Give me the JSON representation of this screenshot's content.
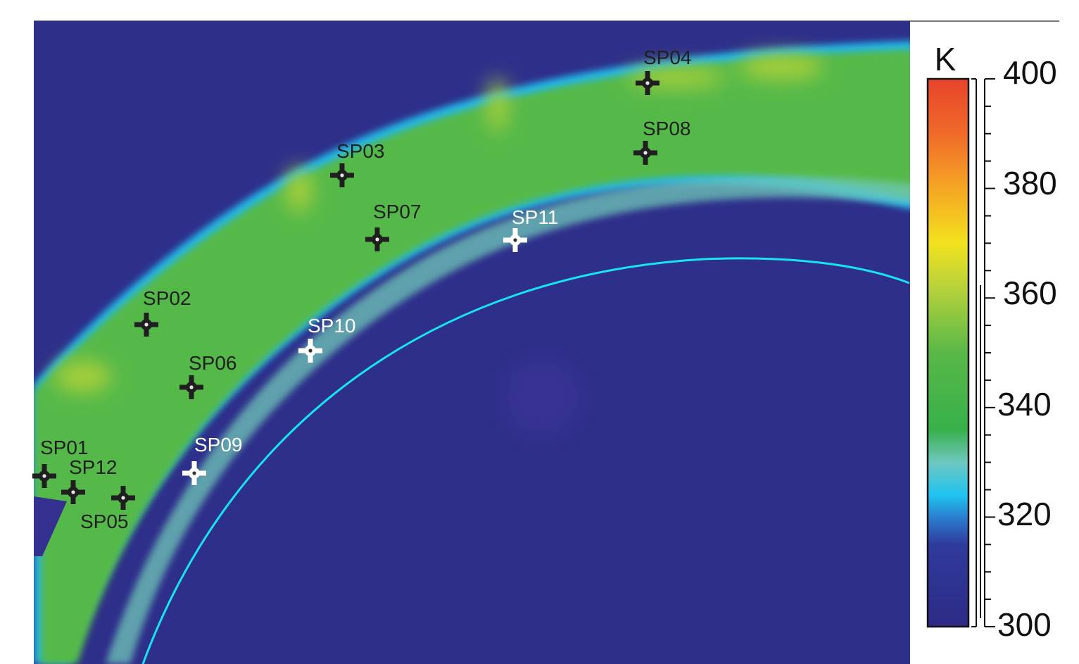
{
  "colorbar": {
    "unit": "K",
    "min": 300,
    "max": 400,
    "tick_labels": [
      "400",
      "380",
      "360",
      "340",
      "320",
      "300"
    ],
    "tick_values": [
      400,
      380,
      360,
      340,
      320,
      300
    ],
    "colors": {
      "300": "#2e2a86",
      "315": "#2f3b9c",
      "320": "#2a7fd0",
      "324": "#1fc3f0",
      "330": "#6ec8c0",
      "336": "#38b04a",
      "350": "#58b848",
      "362": "#b8d23a",
      "370": "#f2e21e",
      "380": "#f5a623",
      "390": "#f06a2a",
      "400": "#e8442a"
    }
  },
  "colors": {
    "background": "#2e2f8a",
    "band_warm": "#54b948",
    "band_hot": "#a8cf3a",
    "band_edge": "#23b7ea",
    "band_inner": "#6fc8b8",
    "inner_zone": "#33308f",
    "cyan_line": "#19e3ee",
    "marker_dark": "#1f1f1f",
    "marker_light": "#ffffff"
  },
  "spot_points": [
    {
      "id": "SP01",
      "label": "SP01",
      "style": "dark"
    },
    {
      "id": "SP02",
      "label": "SP02",
      "style": "dark"
    },
    {
      "id": "SP03",
      "label": "SP03",
      "style": "dark"
    },
    {
      "id": "SP04",
      "label": "SP04",
      "style": "dark"
    },
    {
      "id": "SP05",
      "label": "SP05",
      "style": "dark"
    },
    {
      "id": "SP06",
      "label": "SP06",
      "style": "dark"
    },
    {
      "id": "SP07",
      "label": "SP07",
      "style": "dark"
    },
    {
      "id": "SP08",
      "label": "SP08",
      "style": "dark"
    },
    {
      "id": "SP09",
      "label": "SP09",
      "style": "light"
    },
    {
      "id": "SP10",
      "label": "SP10",
      "style": "light"
    },
    {
      "id": "SP11",
      "label": "SP11",
      "style": "light"
    },
    {
      "id": "SP12",
      "label": "SP12",
      "style": "dark"
    }
  ]
}
